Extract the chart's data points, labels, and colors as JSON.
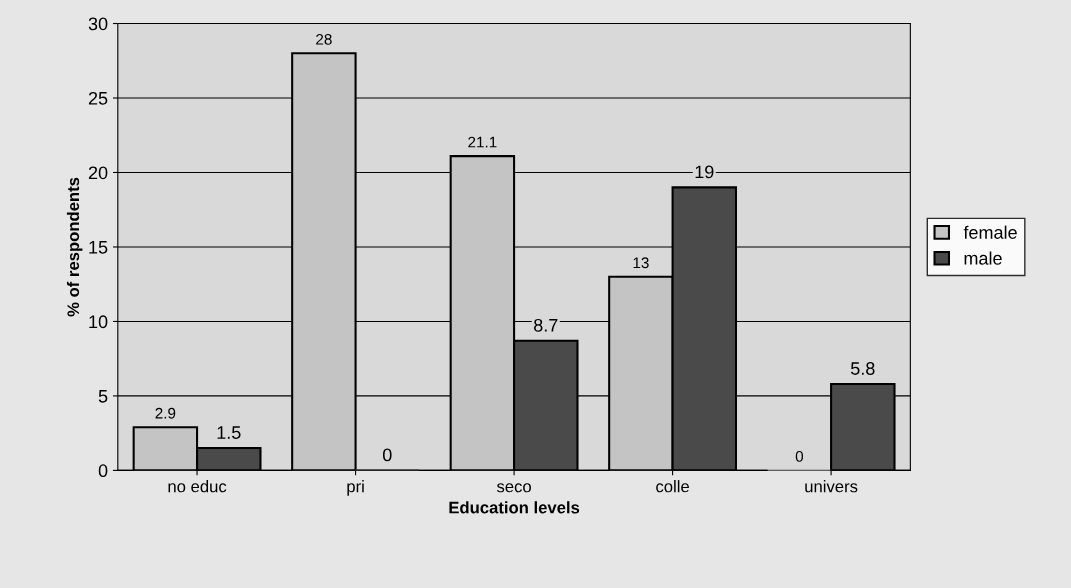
{
  "chart_data": {
    "type": "bar",
    "xlabel": "Education levels",
    "ylabel": "% of respondents",
    "categories": [
      "no educ",
      "pri",
      "seco",
      "colle",
      "univers"
    ],
    "series": [
      {
        "name": "female",
        "color": "#c4c4c4",
        "values": [
          2.9,
          28,
          21.1,
          13,
          0
        ]
      },
      {
        "name": "male",
        "color": "#4a4a4a",
        "values": [
          1.5,
          0,
          8.7,
          19,
          5.8
        ]
      }
    ],
    "ylim": [
      0,
      30
    ],
    "yticks": [
      0,
      5,
      10,
      15,
      20,
      25,
      30
    ],
    "grid": "y",
    "legend": "right",
    "data_labels": true
  }
}
